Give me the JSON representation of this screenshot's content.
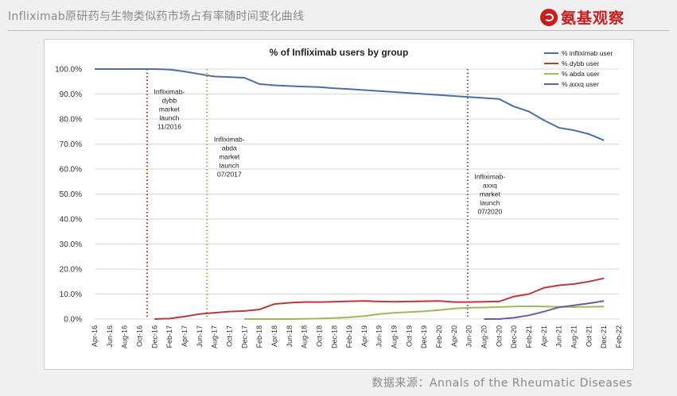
{
  "header": {
    "title": "Infliximab原研药与生物类似药市场占有率随时间变化曲线",
    "brand": "氨基观察"
  },
  "footer": {
    "source": "数据来源：Annals of the Rheumatic Diseases"
  },
  "colors": {
    "infliximab": "#4a6fa5",
    "dybb": "#b83b37",
    "abda": "#9bbb59",
    "axxq": "#7059a0",
    "grid": "#d9d9d9",
    "brand": "#c81e1e"
  },
  "chart_data": {
    "type": "line",
    "title": "% of Infliximab users by group",
    "xlabel": "",
    "ylabel": "",
    "ylim": [
      0,
      100
    ],
    "yticks": [
      "0.0%",
      "10.0%",
      "20.0%",
      "30.0%",
      "40.0%",
      "50.0%",
      "60.0%",
      "70.0%",
      "80.0%",
      "90.0%",
      "100.0%"
    ],
    "categories": [
      "Apr-16",
      "Jun-16",
      "Aug-16",
      "Oct-16",
      "Dec-16",
      "Feb-17",
      "Apr-17",
      "Jun-17",
      "Aug-17",
      "Oct-17",
      "Dec-17",
      "Feb-18",
      "Apr-18",
      "Jun-18",
      "Aug-18",
      "Oct-18",
      "Dec-18",
      "Feb-19",
      "Apr-19",
      "Jun-19",
      "Aug-19",
      "Oct-19",
      "Dec-19",
      "Feb-20",
      "Apr-20",
      "Jun-20",
      "Aug-20",
      "Oct-20",
      "Dec-20",
      "Feb-21",
      "Apr-21",
      "Jun-21",
      "Aug-21",
      "Oct-21",
      "Dec-21",
      "Feb-22"
    ],
    "legend_position": "top-right",
    "grid": "horizontal",
    "series": [
      {
        "name": "% infliximab user",
        "color_key": "infliximab",
        "values": [
          100,
          100,
          100,
          100,
          100,
          99.8,
          99,
          98,
          97,
          96.8,
          96.5,
          94,
          93.5,
          93.2,
          93,
          92.8,
          92.3,
          92,
          91.6,
          91.2,
          90.8,
          90.4,
          90,
          89.6,
          89.2,
          88.8,
          88.4,
          88,
          85,
          83,
          79.5,
          76.5,
          75.5,
          74,
          71.5,
          null
        ]
      },
      {
        "name": "% dybb user",
        "color_key": "dybb",
        "values": [
          null,
          null,
          null,
          null,
          0,
          0.2,
          1,
          2,
          2.5,
          3,
          3.2,
          3.8,
          6,
          6.5,
          6.8,
          6.8,
          6.9,
          7.1,
          7.2,
          7,
          6.9,
          7,
          7.1,
          7.2,
          6.8,
          6.8,
          6.9,
          7,
          9,
          10,
          12.5,
          13.5,
          14,
          15,
          16.3,
          null
        ]
      },
      {
        "name": "% abda user",
        "color_key": "abda",
        "values": [
          null,
          null,
          null,
          null,
          null,
          null,
          null,
          null,
          null,
          null,
          0,
          0,
          0,
          0,
          0.1,
          0.2,
          0.4,
          0.7,
          1.2,
          2,
          2.5,
          2.8,
          3.1,
          3.6,
          4.2,
          4.5,
          4.6,
          4.8,
          5,
          5.1,
          5,
          4.9,
          4.8,
          4.9,
          5,
          null
        ]
      },
      {
        "name": "% axxq user",
        "color_key": "axxq",
        "values": [
          null,
          null,
          null,
          null,
          null,
          null,
          null,
          null,
          null,
          null,
          null,
          null,
          null,
          null,
          null,
          null,
          null,
          null,
          null,
          null,
          null,
          null,
          null,
          null,
          null,
          null,
          0,
          0,
          0.5,
          1.5,
          3,
          4.7,
          5.5,
          6.3,
          7.2,
          null
        ]
      }
    ],
    "annotations": [
      {
        "category_index": 3.5,
        "color_key": "dybb",
        "lines": [
          "Infliximab-",
          "dybb",
          "market",
          "launch",
          "11/2016"
        ],
        "y_value": 90
      },
      {
        "category_index": 7.5,
        "color_key": "abda",
        "lines": [
          "Infliximab-",
          "abda",
          "market",
          "launch",
          "07/2017"
        ],
        "y_value": 71
      },
      {
        "category_index": 24.9,
        "color_key": "axxq",
        "lines": [
          "Infliximab-",
          "axxq",
          "market",
          "launch",
          "07/2020"
        ],
        "y_value": 56
      }
    ]
  }
}
